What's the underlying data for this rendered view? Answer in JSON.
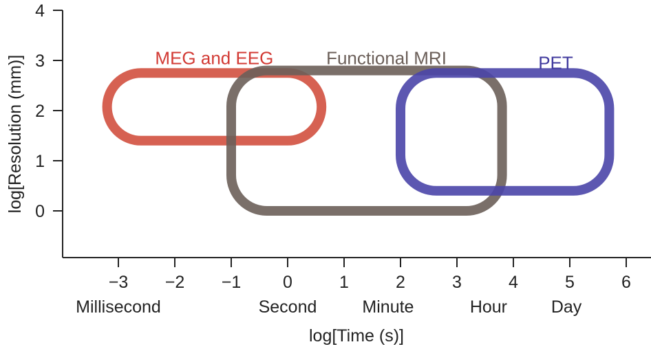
{
  "chart_data": {
    "type": "region",
    "xlabel": "log[Time (s)]",
    "ylabel": "log[Resolution (mm)]",
    "xlim": [
      -4,
      6.45
    ],
    "ylim": [
      -0.9,
      4
    ],
    "x_ticks": [
      -3,
      -2,
      -1,
      0,
      1,
      2,
      3,
      4,
      5,
      6
    ],
    "x_tick_labels": [
      "−3",
      "−2",
      "−1",
      "0",
      "1",
      "2",
      "3",
      "4",
      "5",
      "6"
    ],
    "y_ticks": [
      0,
      1,
      2,
      3,
      4
    ],
    "y_tick_labels": [
      "0",
      "1",
      "2",
      "3",
      "4"
    ],
    "time_units": [
      {
        "label": "Millisecond",
        "x": -3
      },
      {
        "label": "Second",
        "x": 0
      },
      {
        "label": "Minute",
        "x": 1.78
      },
      {
        "label": "Hour",
        "x": 3.56
      },
      {
        "label": "Day",
        "x": 4.94
      }
    ],
    "regions": [
      {
        "name": "MEG and EEG",
        "x_range": [
          -3.2,
          0.6
        ],
        "y_range": [
          1.4,
          2.75
        ],
        "color": "#d1503f",
        "label_color": "#d23a34",
        "label_x": -1.3,
        "label_y": 3.05
      },
      {
        "name": "Functional MRI",
        "x_range": [
          -1.0,
          3.8
        ],
        "y_range": [
          0.0,
          2.8
        ],
        "color": "#6b5f59",
        "label_color": "#6b5f59",
        "label_x": 1.75,
        "label_y": 3.05
      },
      {
        "name": "PET",
        "x_range": [
          2.0,
          5.7
        ],
        "y_range": [
          0.4,
          2.75
        ],
        "color": "#4a45a8",
        "label_color": "#403a9e",
        "label_x": 4.75,
        "label_y": 2.95
      }
    ]
  }
}
